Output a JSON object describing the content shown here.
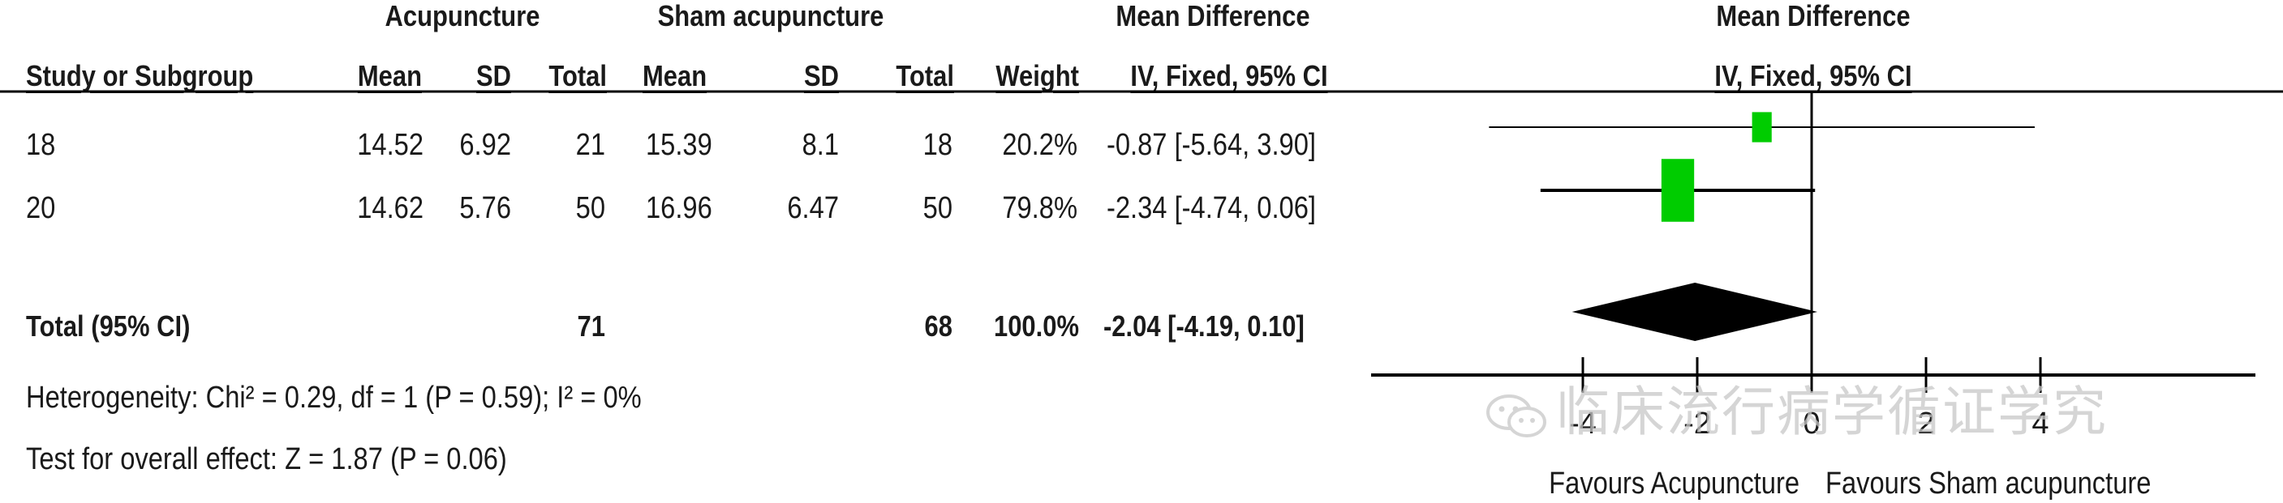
{
  "header": {
    "group1": "Acupuncture",
    "group2": "Sham acupuncture",
    "md_left": "Mean Difference",
    "md_right": "Mean Difference",
    "col_study": "Study or Subgroup",
    "col_mean1": "Mean",
    "col_sd1": "SD",
    "col_total1": "Total",
    "col_mean2": "Mean",
    "col_sd2": "SD",
    "col_total2": "Total",
    "col_weight": "Weight",
    "col_ci_left": "IV, Fixed, 95% CI",
    "col_ci_right": "IV, Fixed, 95% CI"
  },
  "studies": [
    {
      "name": "18",
      "mean1": "14.52",
      "sd1": "6.92",
      "total1": "21",
      "mean2": "15.39",
      "sd2": "8.1",
      "total2": "18",
      "weight": "20.2%",
      "ci": "-0.87 [-5.64, 3.90]"
    },
    {
      "name": "20",
      "mean1": "14.62",
      "sd1": "5.76",
      "total1": "50",
      "mean2": "16.96",
      "sd2": "6.47",
      "total2": "50",
      "weight": "79.8%",
      "ci": "-2.34 [-4.74, 0.06]"
    }
  ],
  "total_row": {
    "label": "Total (95% CI)",
    "total1": "71",
    "total2": "68",
    "weight": "100.0%",
    "ci": "-2.04 [-4.19, 0.10]"
  },
  "heterogeneity": "Heterogeneity: Chi² = 0.29, df = 1 (P = 0.59); I² = 0%",
  "overall_effect": "Test for overall effect: Z = 1.87 (P = 0.06)",
  "favours_left": "Favours Acupuncture",
  "favours_right": "Favours Sham acupuncture",
  "watermark": "临床流行病学循证学究",
  "colors": {
    "study_marker": "#00cc00",
    "pooled_diamond": "#000000",
    "lines": "#000000"
  },
  "chart_data": {
    "type": "forest",
    "xlim": [
      -4,
      4
    ],
    "xticks": [
      -4,
      -2,
      0,
      2,
      4
    ],
    "xtick_labels": [
      "-4",
      "-2",
      "0",
      "2",
      "4"
    ],
    "studies": [
      {
        "name": "18",
        "md": -0.87,
        "lower": -5.64,
        "upper": 3.9,
        "weight": 20.2
      },
      {
        "name": "20",
        "md": -2.34,
        "lower": -4.74,
        "upper": 0.06,
        "weight": 79.8
      }
    ],
    "pooled": {
      "md": -2.04,
      "lower": -4.19,
      "upper": 0.1
    }
  }
}
